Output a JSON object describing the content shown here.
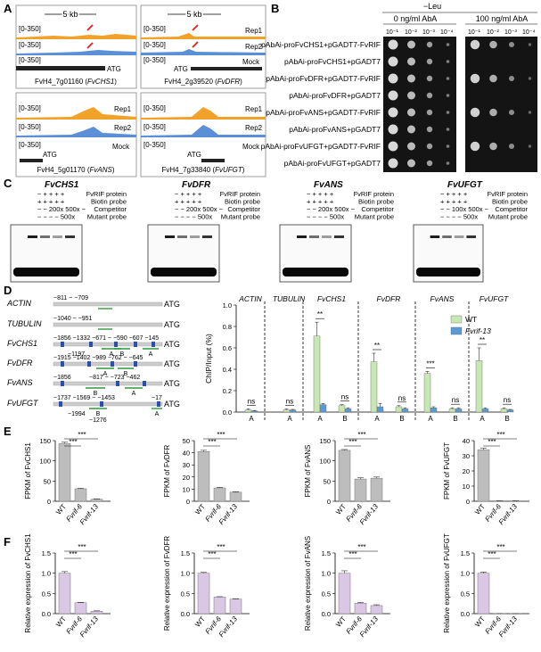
{
  "panels": {
    "A": "A",
    "B": "B",
    "C": "C",
    "D": "D",
    "E": "E",
    "F": "F"
  },
  "colors": {
    "rep1": "#f0a22b",
    "rep2": "#5b8fd6",
    "mock": "#4a76c0",
    "arrow": "#e02020",
    "wt": "#c9e7b5",
    "mut": "#5b9bd5",
    "bar_gray": "#bdbdbd",
    "bar_purple": "#d9c7e4"
  },
  "panelA": {
    "scale_label": "5 kb",
    "range": "[0-350]",
    "rep1": "Rep1",
    "rep2": "Rep2",
    "mock": "Mock",
    "atg": "ATG",
    "genes": [
      {
        "id": "FvH4_7g01160",
        "name": "FvCHS1"
      },
      {
        "id": "FvH4_2g39520",
        "name": "FvDFR"
      },
      {
        "id": "FvH4_5g01170",
        "name": "FvANS"
      },
      {
        "id": "FvH4_7g33840",
        "name": "FvUFGT"
      }
    ]
  },
  "panelB": {
    "medium": "−Leu",
    "cond1": "0 ng/ml AbA",
    "cond2": "100 ng/ml AbA",
    "dilutions": [
      "10⁻¹",
      "10⁻²",
      "10⁻³",
      "10⁻⁴"
    ],
    "rows": [
      "pAbAi-proFvCHS1+pGADT7-FvRIF",
      "pAbAi-proFvCHS1+pGADT7",
      "pAbAi-proFvDFR+pGADT7-FvRIF",
      "pAbAi-proFvDFR+pGADT7",
      "pAbAi-proFvANS+pGADT7-FvRIF",
      "pAbAi-proFvANS+pGADT7",
      "pAbAi-proFvUFGT+pGADT7-FvRIF",
      "pAbAi-proFvUFGT+pGADT7"
    ]
  },
  "panelC": {
    "rowlabels": [
      "FvRIF protein",
      "Biotin probe",
      "Competitor",
      "Mutant probe"
    ],
    "genes": [
      {
        "name": "FvCHS1",
        "r1": "−  +  +  +  +",
        "r2": "+  +  +  +  +",
        "r3": "−  −  200x 500x −",
        "r4": "−  −  −  −  500x"
      },
      {
        "name": "FvDFR",
        "r1": "−  +  +  +  +",
        "r2": "+  +  +  +  +",
        "r3": "−  −  200x 500x −",
        "r4": "−  −  −  −  500x"
      },
      {
        "name": "FvANS",
        "r1": "−  +  +  +  +",
        "r2": "+  +  +  +  +",
        "r3": "−  −  200x 500x −",
        "r4": "−  −  −  −  500x"
      },
      {
        "name": "FvUFGT",
        "r1": "−  +  +  +  +",
        "r2": "+  +  +  +  +",
        "r3": "−  −  100x 500x −",
        "r4": "−  −  −  −  500x"
      }
    ]
  },
  "panelD": {
    "genes": [
      {
        "name": "ACTIN",
        "pos": "−811 ~ −709",
        "atg": "ATG"
      },
      {
        "name": "TUBULIN",
        "pos": "−1040 ~ −951",
        "atg": "ATG"
      },
      {
        "name": "FvCHS1",
        "pos": "−1856 −1332 −671 ~ −590 −607 −145",
        "pos2": "−1197",
        "atg": "ATG"
      },
      {
        "name": "FvDFR",
        "pos": "−1915 −1402 −989 −762 ~ −645",
        "atg": "ATG"
      },
      {
        "name": "FvANS",
        "pos": "−1856",
        "pos_b": "−817 ~ −723 −462",
        "atg": "ATG"
      },
      {
        "name": "FvUFGT",
        "pos": "−1737 −1569 ~ −1453",
        "pos_end": "−17",
        "pos2": "−1994",
        "pos3": "−1276",
        "atg": "ATG"
      }
    ],
    "region_labels": {
      "a": "A",
      "b": "B"
    }
  },
  "chart_data": [
    {
      "type": "bar",
      "panel": "D",
      "ylabel": "ChIP/Input (%)",
      "ylim": [
        0,
        1.0
      ],
      "yticks": [
        "0.0",
        "0.2",
        "0.4",
        "0.6",
        "0.8",
        "1.0"
      ],
      "groups": [
        "ACTIN",
        "TUBULIN",
        "FvCHS1",
        "FvDFR",
        "FvANS",
        "FvUFGT"
      ],
      "categories": [
        "A",
        "A",
        "A",
        "B",
        "A",
        "B",
        "A",
        "B",
        "A",
        "B"
      ],
      "series": [
        {
          "name": "WT",
          "values": [
            0.02,
            0.02,
            0.71,
            0.06,
            0.47,
            0.05,
            0.36,
            0.03,
            0.48,
            0.03
          ],
          "errors": [
            0.01,
            0.01,
            0.13,
            0.01,
            0.08,
            0.01,
            0.02,
            0.01,
            0.12,
            0.01
          ]
        },
        {
          "name": "Fvrif-13",
          "values": [
            0.01,
            0.02,
            0.07,
            0.03,
            0.05,
            0.03,
            0.04,
            0.03,
            0.03,
            0.02
          ],
          "errors": [
            0.005,
            0.005,
            0.01,
            0.01,
            0.03,
            0.01,
            0.01,
            0.01,
            0.01,
            0.005
          ]
        }
      ],
      "annotations": [
        "ns",
        "ns",
        "**",
        "ns",
        "**",
        "ns",
        "***",
        "ns",
        "**",
        "ns"
      ]
    },
    {
      "type": "bar",
      "panel": "E",
      "charts": [
        {
          "ylabel": "FPKM of FvCHS1",
          "yticks": [
            "0",
            "50",
            "100",
            "150"
          ],
          "ymax": 150,
          "values": [
            143,
            31,
            5
          ],
          "errors": [
            3,
            1,
            1
          ]
        },
        {
          "ylabel": "FPKM of FvDFR",
          "yticks": [
            "0",
            "10",
            "20",
            "30",
            "40",
            "50"
          ],
          "ymax": 50,
          "values": [
            41,
            11,
            7.5
          ],
          "errors": [
            1,
            0.5,
            0.4
          ]
        },
        {
          "ylabel": "FPKM of FvANS",
          "yticks": [
            "0",
            "50",
            "100",
            "150"
          ],
          "ymax": 150,
          "values": [
            126,
            55,
            57
          ],
          "errors": [
            2,
            3,
            3
          ]
        },
        {
          "ylabel": "FPKM of FvUFGT",
          "yticks": [
            "0",
            "10",
            "20",
            "30",
            "40"
          ],
          "ymax": 40,
          "values": [
            34,
            0.3,
            0.3
          ],
          "errors": [
            1,
            0.1,
            0.1
          ]
        }
      ],
      "categories": [
        "WT",
        "Fvrif-6",
        "Fvrif-13"
      ],
      "sig": "***"
    },
    {
      "type": "bar",
      "panel": "F",
      "charts": [
        {
          "ylabel": "Relative expression of FvCHS1",
          "values": [
            1.0,
            0.27,
            0.06
          ],
          "errors": [
            0.04,
            0.01,
            0.01
          ]
        },
        {
          "ylabel": "Relative expression of FvDFR",
          "values": [
            1.0,
            0.41,
            0.36
          ],
          "errors": [
            0.02,
            0.01,
            0.01
          ]
        },
        {
          "ylabel": "Relative expression of FvANS",
          "values": [
            1.0,
            0.26,
            0.2
          ],
          "errors": [
            0.06,
            0.02,
            0.02
          ]
        },
        {
          "ylabel": "Relative expression of FvUFGT",
          "values": [
            1.0,
            0.003,
            0.002
          ],
          "errors": [
            0.03,
            0.001,
            0.001
          ]
        }
      ],
      "yticks": [
        "0.0",
        "0.5",
        "1.0",
        "1.5"
      ],
      "ymax": 1.5,
      "categories": [
        "WT",
        "Fvrif-6",
        "Fvrif-13"
      ],
      "sig": "***"
    }
  ]
}
